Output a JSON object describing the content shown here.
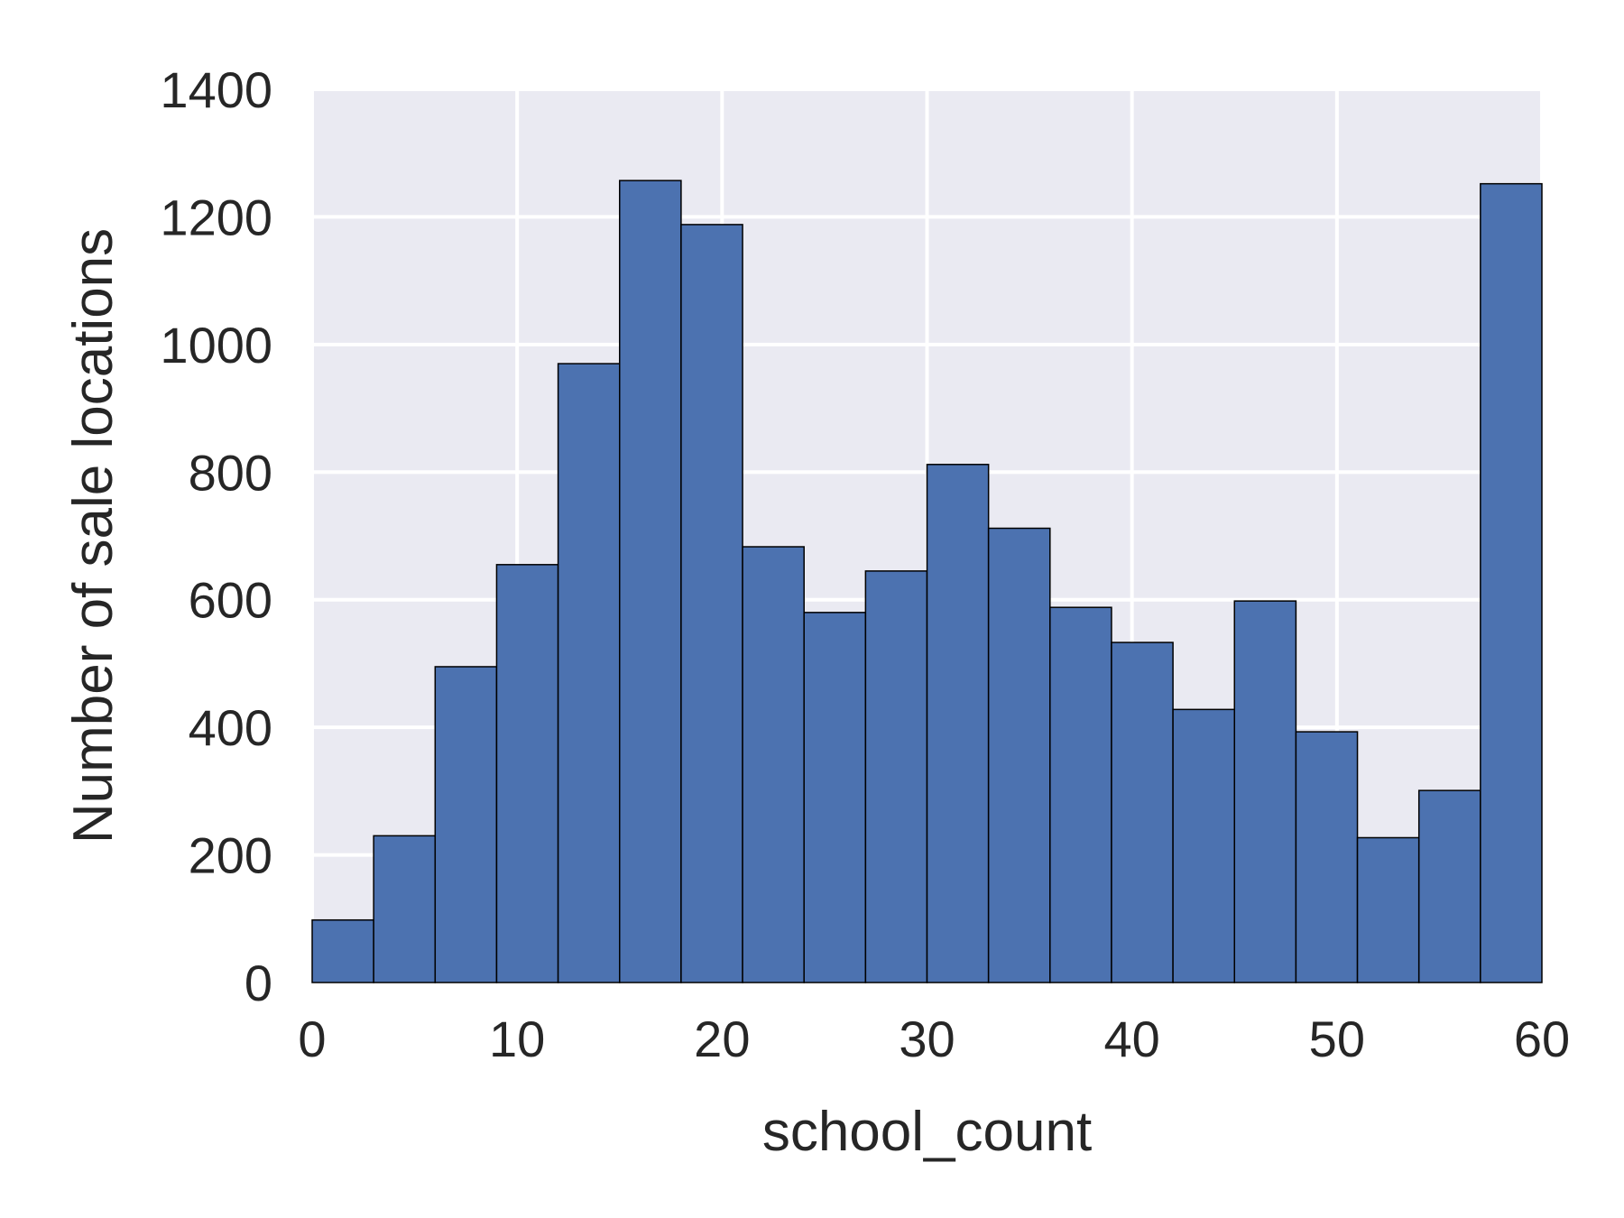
{
  "chart_data": {
    "type": "bar",
    "subtype": "histogram",
    "title": "",
    "xlabel": "school_count",
    "ylabel": "Number of sale locations",
    "xlim": [
      0,
      60
    ],
    "ylim": [
      0,
      1400
    ],
    "xticks": [
      0,
      10,
      20,
      30,
      40,
      50,
      60
    ],
    "yticks": [
      0,
      200,
      400,
      600,
      800,
      1000,
      1200,
      1400
    ],
    "grid": true,
    "legend": "none",
    "bins": [
      {
        "x0": 0,
        "x1": 3,
        "value": 98
      },
      {
        "x0": 3,
        "x1": 6,
        "value": 230
      },
      {
        "x0": 6,
        "x1": 9,
        "value": 495
      },
      {
        "x0": 9,
        "x1": 12,
        "value": 655
      },
      {
        "x0": 12,
        "x1": 15,
        "value": 970
      },
      {
        "x0": 15,
        "x1": 18,
        "value": 1257
      },
      {
        "x0": 18,
        "x1": 21,
        "value": 1188
      },
      {
        "x0": 21,
        "x1": 24,
        "value": 683
      },
      {
        "x0": 24,
        "x1": 27,
        "value": 580
      },
      {
        "x0": 27,
        "x1": 30,
        "value": 645
      },
      {
        "x0": 30,
        "x1": 33,
        "value": 812
      },
      {
        "x0": 33,
        "x1": 36,
        "value": 712
      },
      {
        "x0": 36,
        "x1": 39,
        "value": 588
      },
      {
        "x0": 39,
        "x1": 42,
        "value": 533
      },
      {
        "x0": 42,
        "x1": 45,
        "value": 428
      },
      {
        "x0": 45,
        "x1": 48,
        "value": 598
      },
      {
        "x0": 48,
        "x1": 51,
        "value": 393
      },
      {
        "x0": 51,
        "x1": 54,
        "value": 227
      },
      {
        "x0": 54,
        "x1": 57,
        "value": 301
      },
      {
        "x0": 57,
        "x1": 60,
        "value": 1252
      }
    ],
    "colors": {
      "bar": "#4c72b0",
      "bar_edge": "#000000",
      "plot_background": "#eaeaf2",
      "grid": "#ffffff",
      "text": "#262626"
    }
  }
}
